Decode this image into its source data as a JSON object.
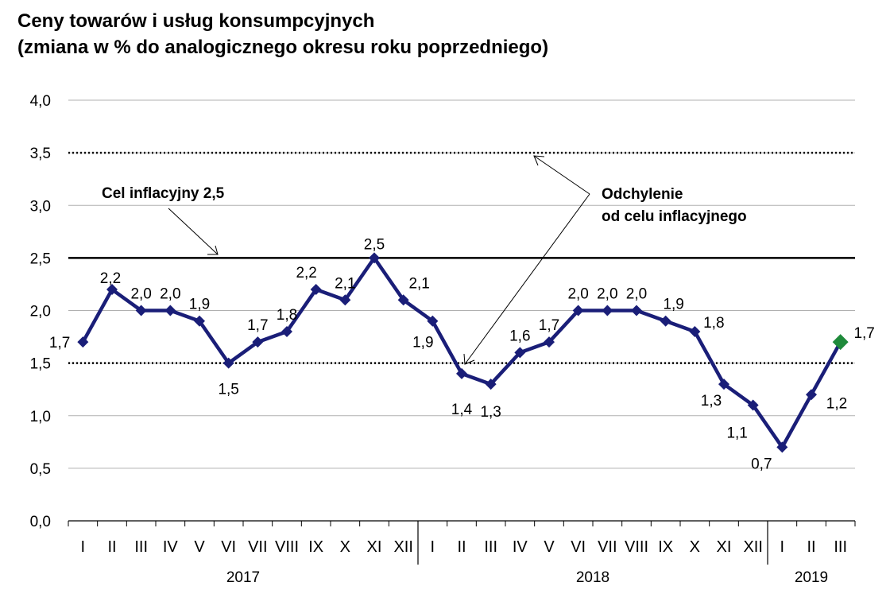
{
  "title_lines": [
    "Ceny towarów i usług konsumpcyjnych",
    "(zmiana w % do analogicznego okresu roku poprzedniego)"
  ],
  "colors": {
    "series": "#1a1e78",
    "highlight": "#1f8a3b",
    "target": "#000000",
    "grid": "#b0b0b0"
  },
  "chart_data": {
    "type": "line",
    "ylim": [
      0,
      4
    ],
    "y_ticks": [
      "0,0",
      "0,5",
      "1,0",
      "1,5",
      "2,0",
      "2,5",
      "3,0",
      "3,5",
      "4,0"
    ],
    "y_tick_values": [
      0,
      0.5,
      1,
      1.5,
      2,
      2.5,
      3,
      3.5,
      4
    ],
    "grid": true,
    "categories": [
      "I",
      "II",
      "III",
      "IV",
      "V",
      "VI",
      "VII",
      "VIII",
      "IX",
      "X",
      "XI",
      "XII",
      "I",
      "II",
      "III",
      "IV",
      "V",
      "VI",
      "VII",
      "VIII",
      "IX",
      "X",
      "XI",
      "XII",
      "I",
      "II",
      "III"
    ],
    "years": [
      {
        "label": "2017",
        "start": 0,
        "end": 11
      },
      {
        "label": "2018",
        "start": 12,
        "end": 23
      },
      {
        "label": "2019",
        "start": 24,
        "end": 26
      }
    ],
    "series": [
      {
        "values": [
          1.7,
          2.2,
          2.0,
          2.0,
          1.9,
          1.5,
          1.7,
          1.8,
          2.2,
          2.1,
          2.5,
          2.1,
          1.9,
          1.4,
          1.3,
          1.6,
          1.7,
          2.0,
          2.0,
          2.0,
          1.9,
          1.8,
          1.3,
          1.1,
          0.7,
          1.2,
          1.7
        ],
        "labels": [
          "1,7",
          "2,2",
          "2,0",
          "2,0",
          "1,9",
          "1,5",
          "1,7",
          "1,8",
          "2,2",
          "2,1",
          "2,5",
          "2,1",
          "1,9",
          "1,4",
          "1,3",
          "1,6",
          "1,7",
          "2,0",
          "2,0",
          "2,0",
          "1,9",
          "1,8",
          "1,3",
          "1,1",
          "0,7",
          "1,2",
          "1,7"
        ],
        "highlight_last": true
      }
    ],
    "reference_lines": [
      {
        "value": 2.5,
        "style": "solid"
      },
      {
        "value": 3.5,
        "style": "dotted"
      },
      {
        "value": 1.5,
        "style": "dotted"
      }
    ],
    "annotations": [
      {
        "text": "Cel inflacyjny 2,5"
      },
      {
        "text_lines": [
          "Odchylenie",
          "od celu inflacyjnego"
        ]
      }
    ]
  }
}
